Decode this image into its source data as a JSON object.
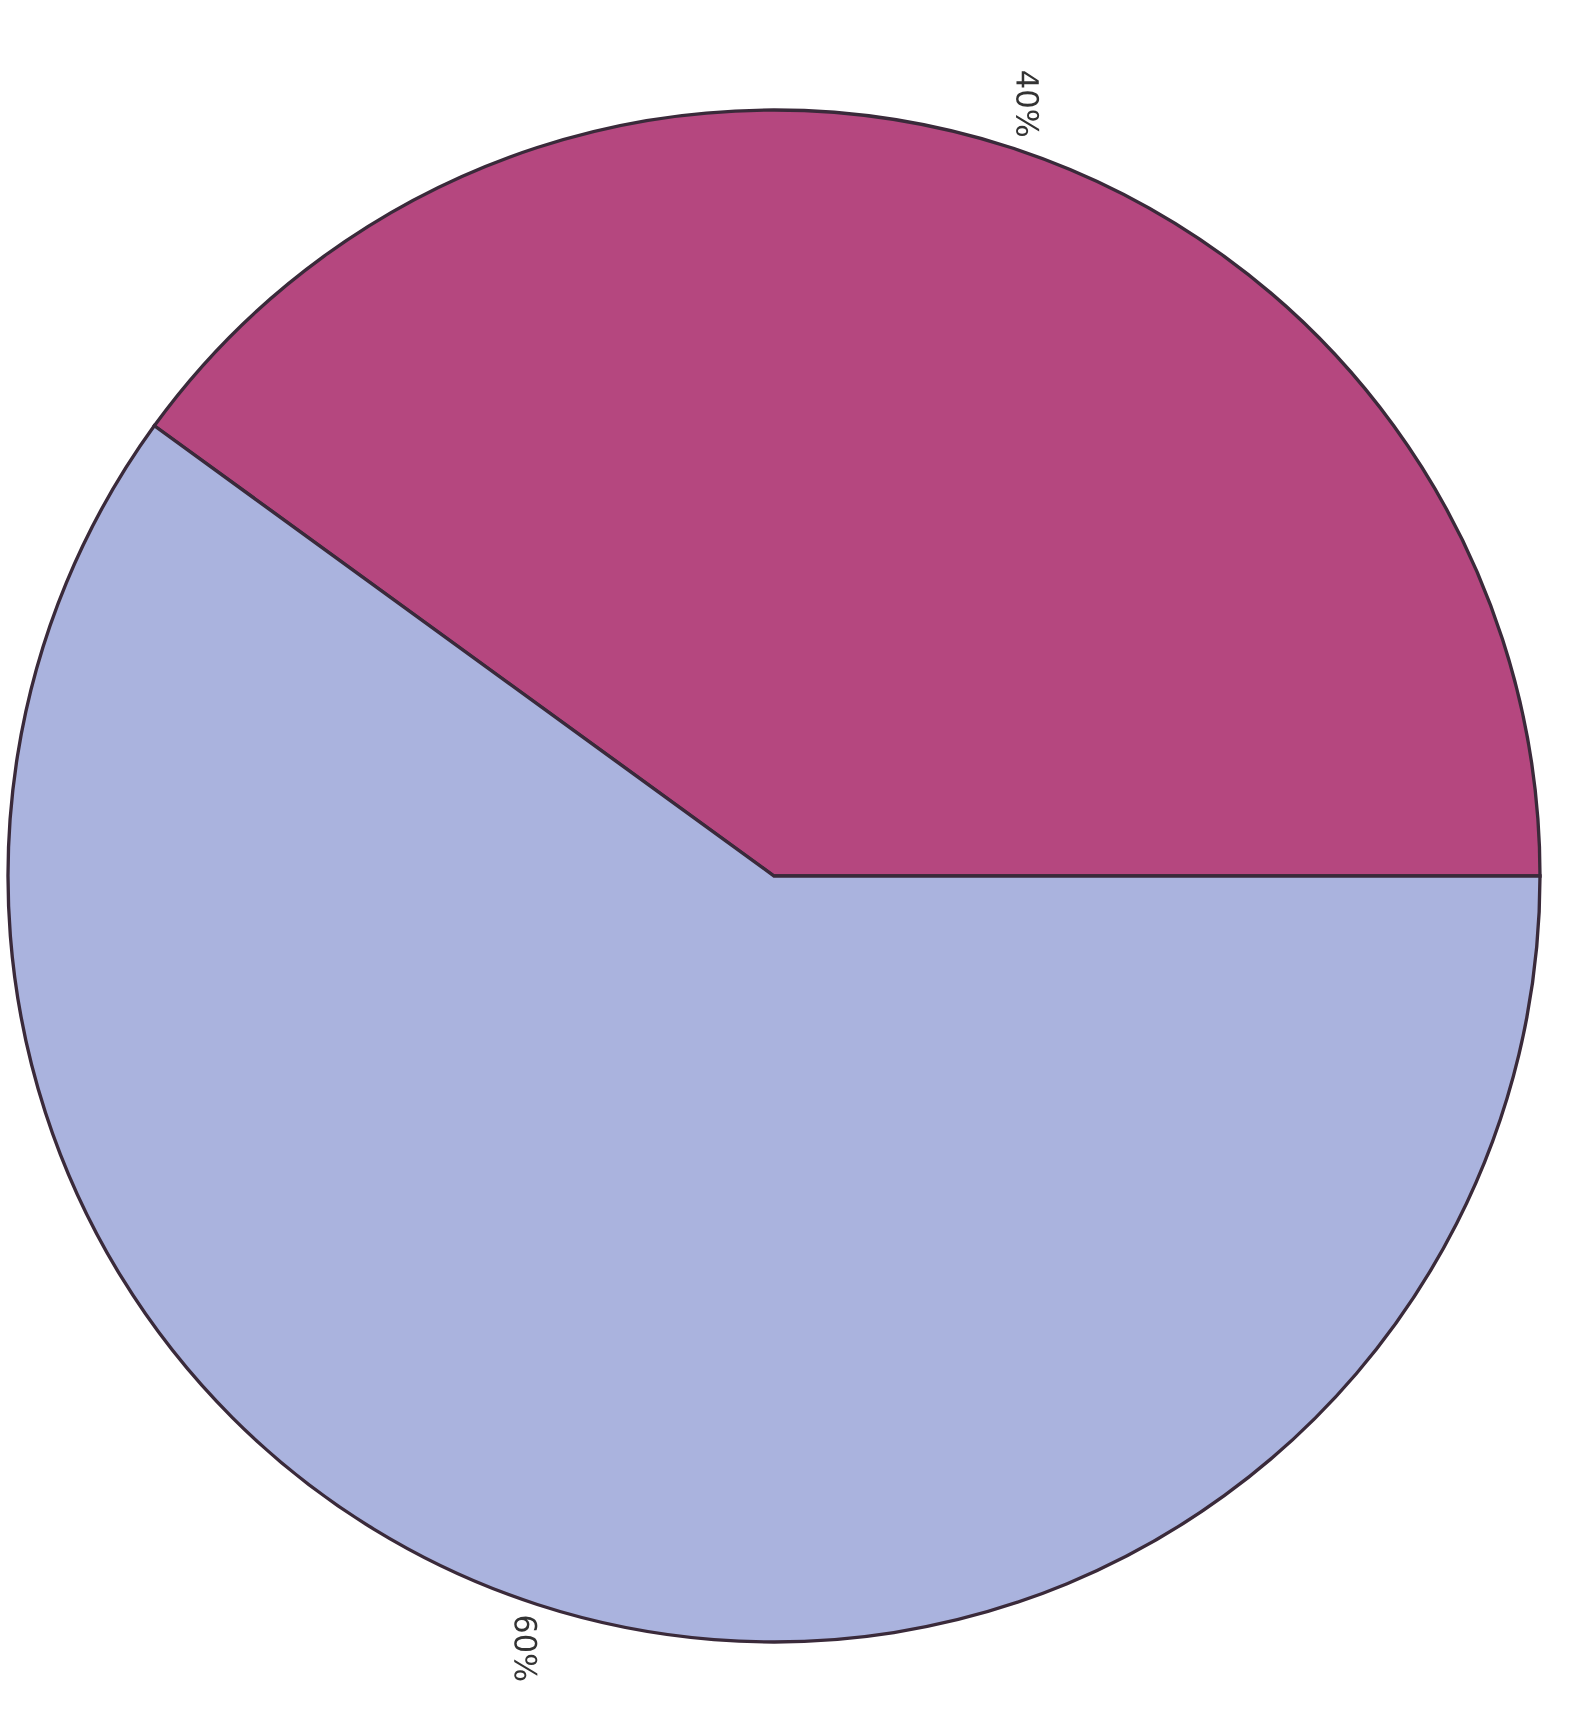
{
  "chart_data": {
    "type": "pie",
    "categories": [
      null,
      null
    ],
    "values": [
      40,
      60
    ],
    "colors": [
      "#b5477f",
      "#aab3de"
    ],
    "value_labels": [
      "40%",
      "60%"
    ]
  }
}
